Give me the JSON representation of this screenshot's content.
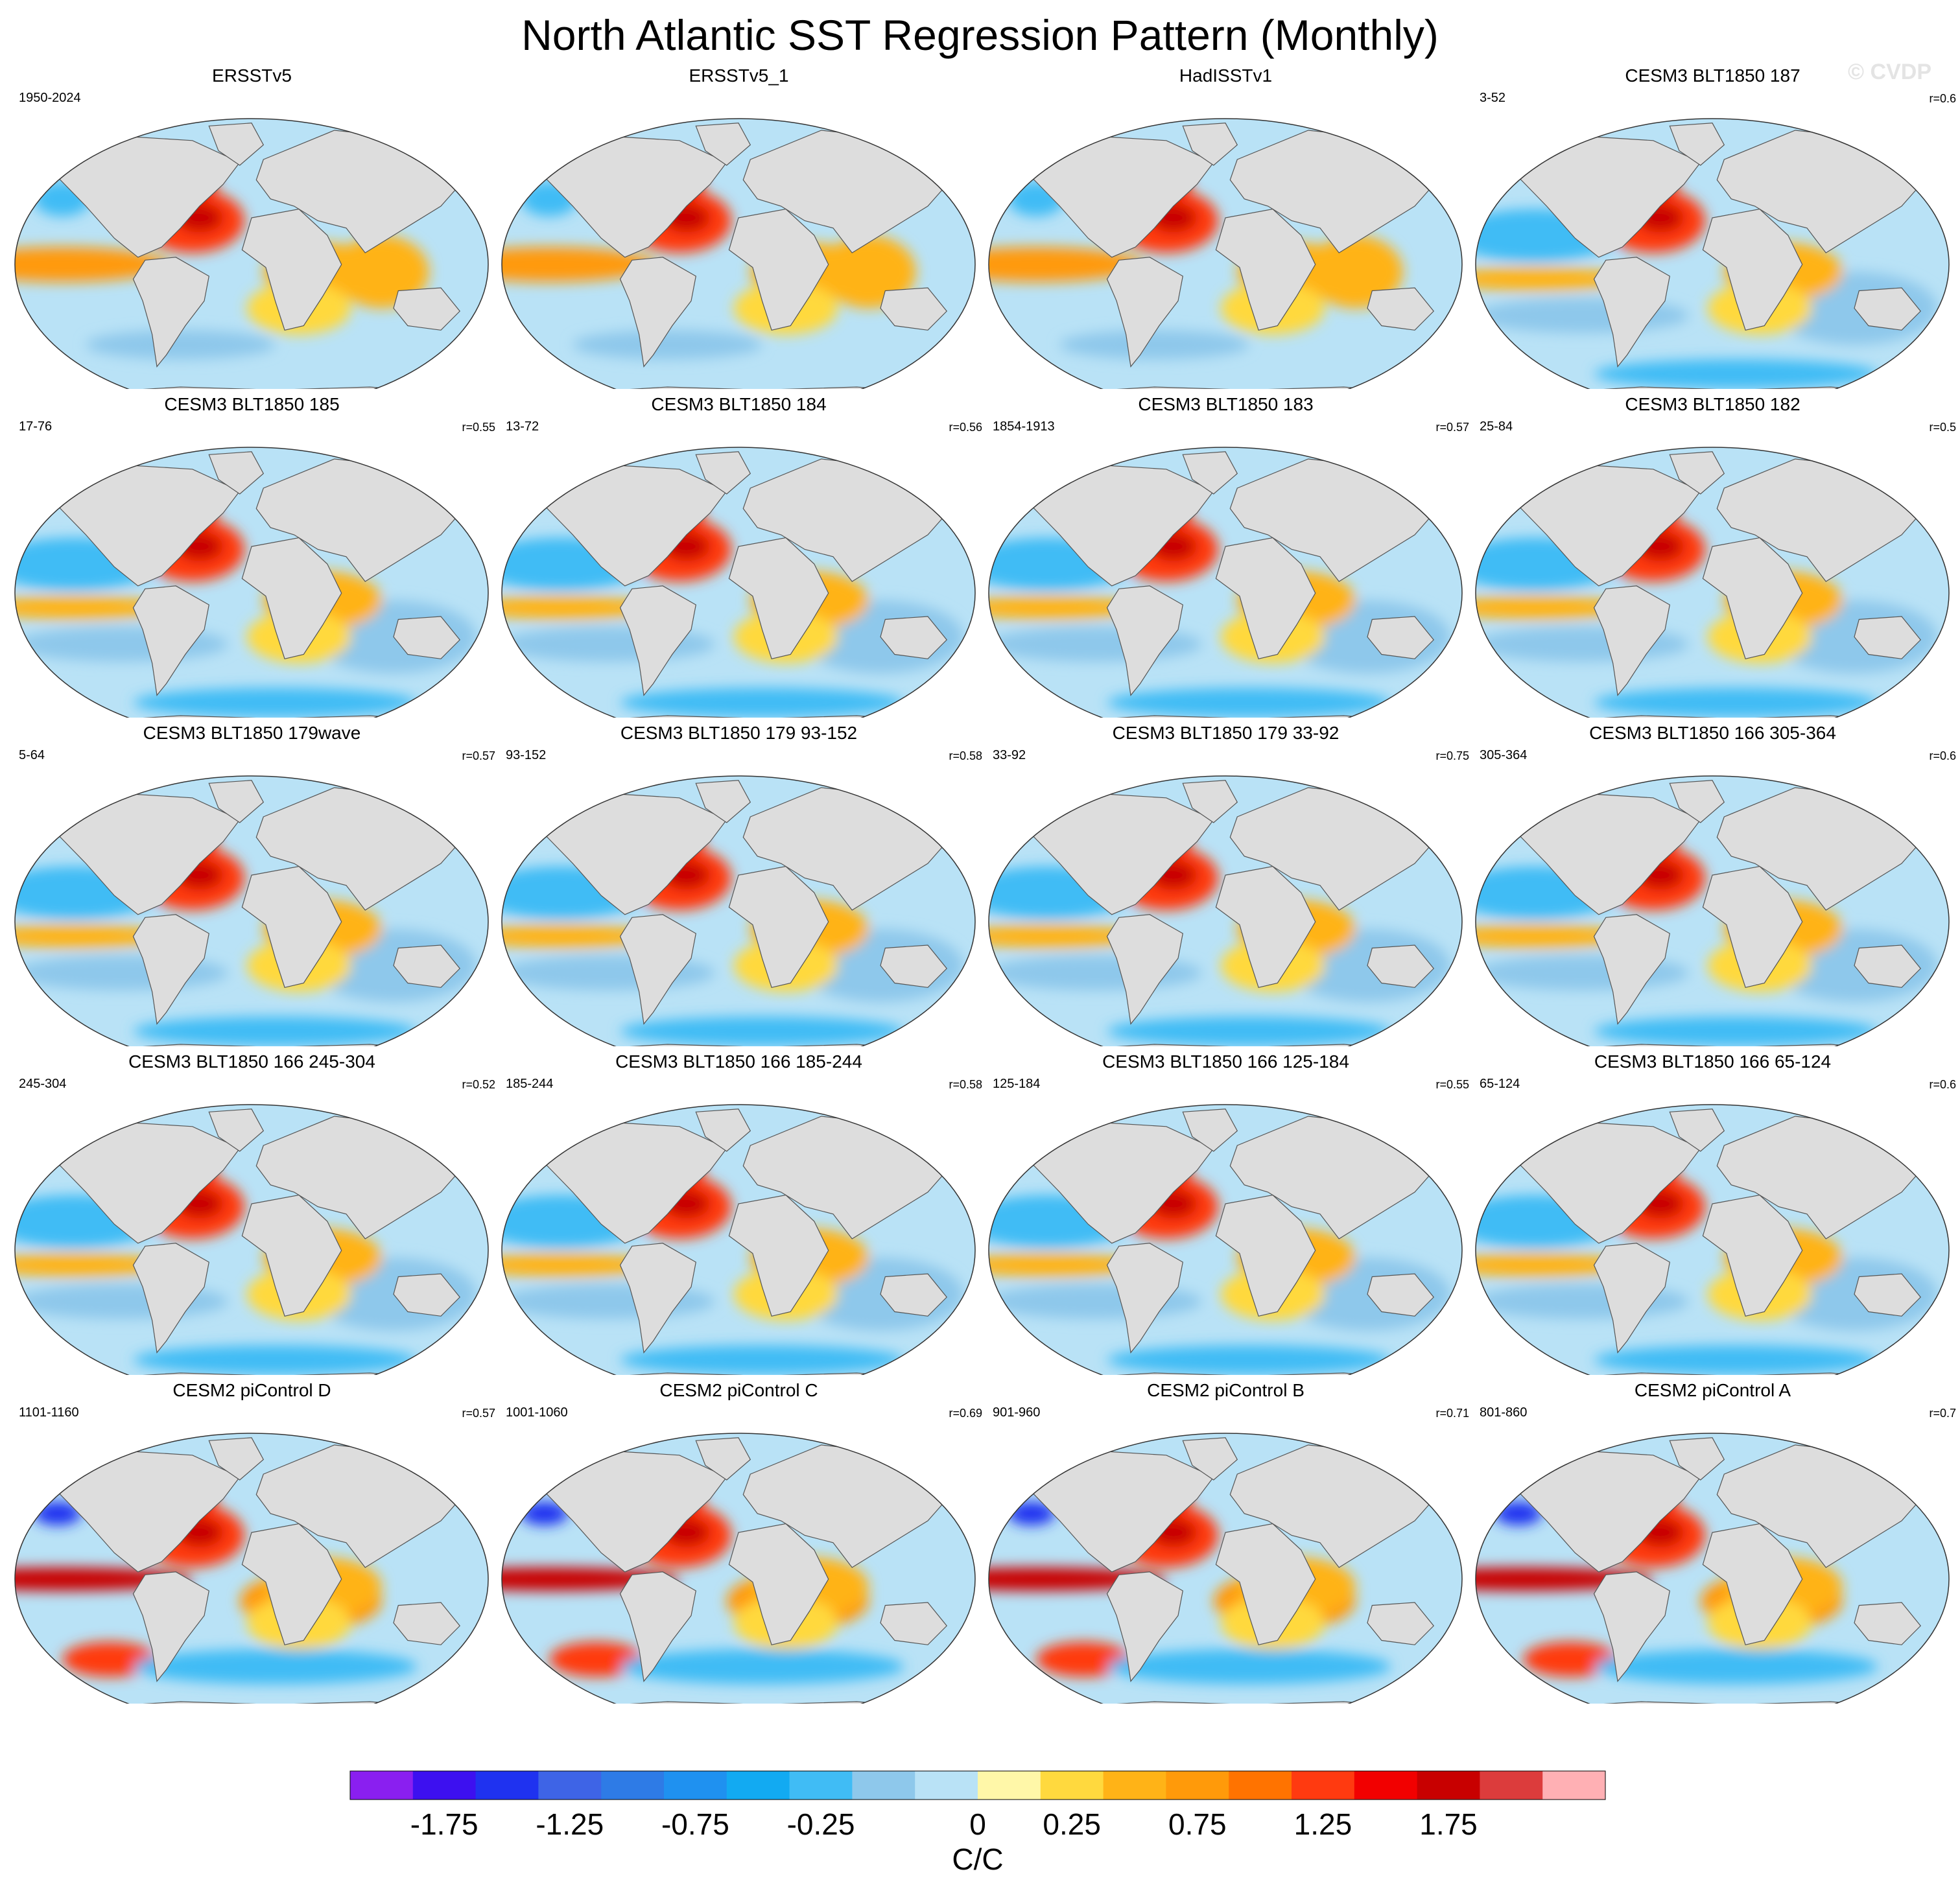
{
  "title": "North Atlantic SST Regression Pattern (Monthly)",
  "watermark": "© CVDP",
  "chart_data": {
    "type": "heatmap",
    "title": "North Atlantic SST Regression Pattern (Monthly)",
    "projection": "Robinson (global map, 0° centered)",
    "units": "C/C",
    "colorbar": {
      "tick_labels": [
        "-1.75",
        "-1.25",
        "-0.75",
        "-0.25",
        "0",
        "0.25",
        "0.75",
        "1.25",
        "1.75"
      ],
      "levels": [
        -2.0,
        -1.75,
        -1.5,
        -1.25,
        -1.0,
        -0.75,
        -0.5,
        -0.25,
        -0.1,
        0,
        0.1,
        0.25,
        0.5,
        0.75,
        1.0,
        1.25,
        1.5,
        1.75,
        2.0
      ],
      "colors": [
        "#8a1ff0",
        "#3d10f0",
        "#1f32f0",
        "#3e64e6",
        "#2e7be6",
        "#1f91f0",
        "#12aaf2",
        "#40bcf5",
        "#8ec8eb",
        "#b9e2f6",
        "#fff7a8",
        "#ffd93e",
        "#ffb317",
        "#ff9a0a",
        "#ff7300",
        "#ff3a10",
        "#f20000",
        "#c80000",
        "#dc3c3c",
        "#ffb0b4"
      ]
    },
    "panels": [
      {
        "title": "ERSSTv5",
        "years": "1950-2024",
        "corr": ""
      },
      {
        "title": "ERSSTv5_1",
        "years": "",
        "corr": ""
      },
      {
        "title": "HadISSTv1",
        "years": "",
        "corr": ""
      },
      {
        "title": "CESM3 BLT1850 187",
        "years": "3-52",
        "corr": "r=0.6"
      },
      {
        "title": "CESM3 BLT1850 185",
        "years": "17-76",
        "corr": "r=0.55"
      },
      {
        "title": "CESM3 BLT1850 184",
        "years": "13-72",
        "corr": "r=0.56"
      },
      {
        "title": "CESM3 BLT1850 183",
        "years": "1854-1913",
        "corr": "r=0.57"
      },
      {
        "title": "CESM3 BLT1850 182",
        "years": "25-84",
        "corr": "r=0.5"
      },
      {
        "title": "CESM3 BLT1850 179wave",
        "years": "5-64",
        "corr": "r=0.57"
      },
      {
        "title": "CESM3 BLT1850 179 93-152",
        "years": "93-152",
        "corr": "r=0.58"
      },
      {
        "title": "CESM3 BLT1850 179 33-92",
        "years": "33-92",
        "corr": "r=0.75"
      },
      {
        "title": "CESM3 BLT1850 166 305-364",
        "years": "305-364",
        "corr": "r=0.6"
      },
      {
        "title": "CESM3 BLT1850 166 245-304",
        "years": "245-304",
        "corr": "r=0.52"
      },
      {
        "title": "CESM3 BLT1850 166 185-244",
        "years": "185-244",
        "corr": "r=0.58"
      },
      {
        "title": "CESM3 BLT1850 166 125-184",
        "years": "125-184",
        "corr": "r=0.55"
      },
      {
        "title": "CESM3 BLT1850 166 65-124",
        "years": "65-124",
        "corr": "r=0.6"
      },
      {
        "title": "CESM2 piControl D",
        "years": "1101-1160",
        "corr": "r=0.57"
      },
      {
        "title": "CESM2 piControl C",
        "years": "1001-1060",
        "corr": "r=0.69"
      },
      {
        "title": "CESM2 piControl B",
        "years": "901-960",
        "corr": "r=0.71"
      },
      {
        "title": "CESM2 piControl A",
        "years": "801-860",
        "corr": "r=0.7"
      }
    ]
  }
}
